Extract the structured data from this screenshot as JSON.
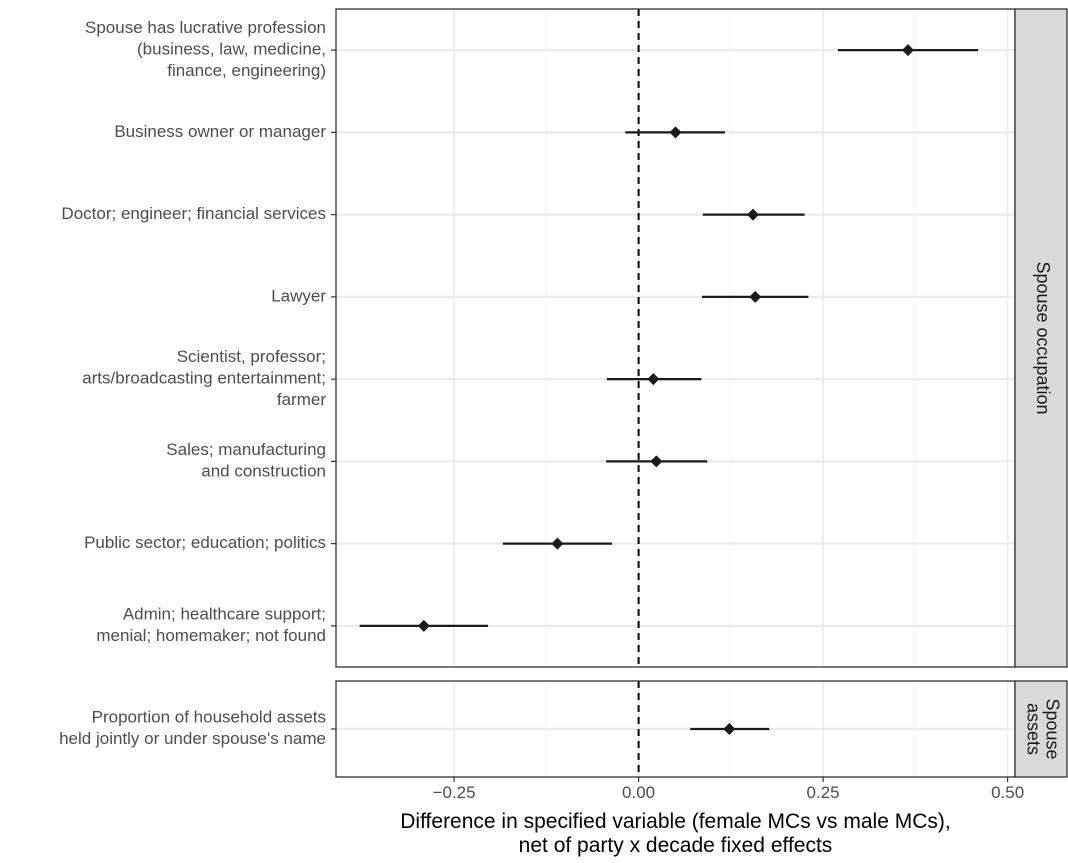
{
  "chart_data": {
    "type": "scatter",
    "subtype": "coefficient plot with confidence intervals, faceted",
    "xlabel": [
      "Difference in specified variable (female MCs vs male MCs),",
      "net of party x decade fixed effects"
    ],
    "xlim": [
      -0.41,
      0.51
    ],
    "xticks": [
      -0.25,
      0.0,
      0.25,
      0.5
    ],
    "xtick_labels": [
      "−0.25",
      "0.00",
      "0.25",
      "0.50"
    ],
    "reference_line": 0,
    "grid": true,
    "panels": [
      {
        "strip_label": [
          "Spouse occupation"
        ],
        "rows": [
          {
            "label": [
              "Spouse has lucrative profession",
              "(business, law, medicine,",
              "finance, engineering)"
            ],
            "estimate": 0.365,
            "lo": 0.27,
            "hi": 0.46
          },
          {
            "label": [
              "Business owner or manager"
            ],
            "estimate": 0.05,
            "lo": -0.018,
            "hi": 0.117
          },
          {
            "label": [
              "Doctor; engineer; financial services"
            ],
            "estimate": 0.155,
            "lo": 0.087,
            "hi": 0.225
          },
          {
            "label": [
              "Lawyer"
            ],
            "estimate": 0.158,
            "lo": 0.086,
            "hi": 0.23
          },
          {
            "label": [
              "Scientist, professor;",
              "arts/broadcasting entertainment;",
              "farmer"
            ],
            "estimate": 0.02,
            "lo": -0.043,
            "hi": 0.085
          },
          {
            "label": [
              "Sales; manufacturing",
              "and construction"
            ],
            "estimate": 0.024,
            "lo": -0.044,
            "hi": 0.093
          },
          {
            "label": [
              "Public sector; education; politics"
            ],
            "estimate": -0.11,
            "lo": -0.184,
            "hi": -0.036
          },
          {
            "label": [
              "Admin; healthcare support;",
              "menial; homemaker; not found"
            ],
            "estimate": -0.291,
            "lo": -0.378,
            "hi": -0.204
          }
        ]
      },
      {
        "strip_label": [
          "Spouse",
          "assets"
        ],
        "rows": [
          {
            "label": [
              "Proportion of household assets",
              "held jointly or under spouse's name"
            ],
            "estimate": 0.123,
            "lo": 0.07,
            "hi": 0.177
          }
        ]
      }
    ]
  }
}
